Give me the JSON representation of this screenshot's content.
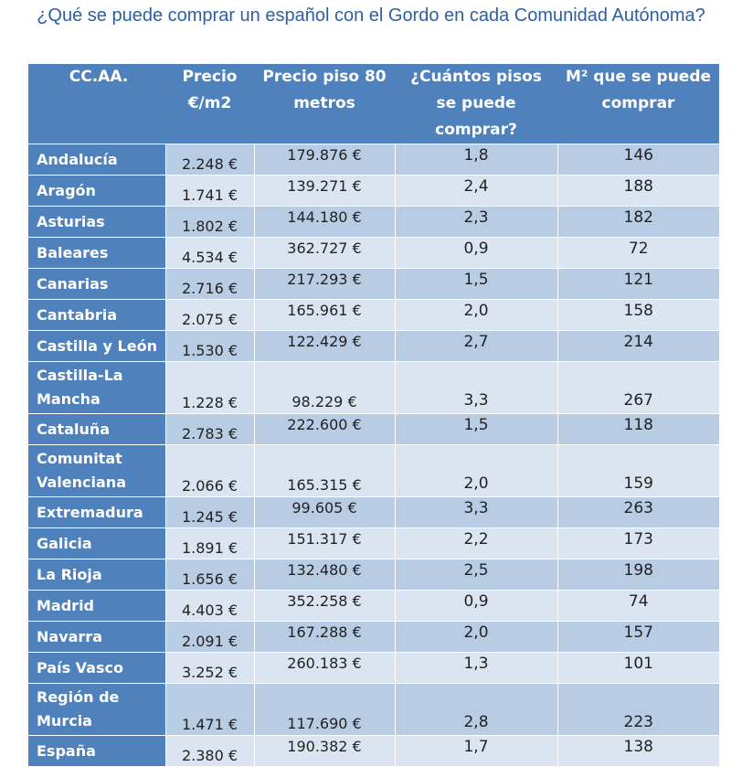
{
  "title": "¿Qué se puede comprar un español con el Gordo en cada Comunidad Autónoma?",
  "table": {
    "headers": [
      "CC.AA.",
      "Precio €/m2",
      "Precio piso 80 metros",
      "¿Cuántos pisos se puede comprar?",
      "M² que se puede comprar"
    ],
    "rows": [
      {
        "region": "Andalucía",
        "price_m2": "2.248 €",
        "price_flat": "179.876 €",
        "flats": "1,8",
        "m2": "146"
      },
      {
        "region": "Aragón",
        "price_m2": "1.741 €",
        "price_flat": "139.271 €",
        "flats": "2,4",
        "m2": "188"
      },
      {
        "region": "Asturias",
        "price_m2": "1.802 €",
        "price_flat": "144.180 €",
        "flats": "2,3",
        "m2": "182"
      },
      {
        "region": "Baleares",
        "price_m2": "4.534 €",
        "price_flat": "362.727 €",
        "flats": "0,9",
        "m2": "72"
      },
      {
        "region": "Canarias",
        "price_m2": "2.716 €",
        "price_flat": "217.293 €",
        "flats": "1,5",
        "m2": "121"
      },
      {
        "region": "Cantabria",
        "price_m2": "2.075 €",
        "price_flat": "165.961 €",
        "flats": "2,0",
        "m2": "158"
      },
      {
        "region": "Castilla y León",
        "price_m2": "1.530 €",
        "price_flat": "122.429 €",
        "flats": "2,7",
        "m2": "214"
      },
      {
        "region": "Castilla-La Mancha",
        "price_m2": "1.228 €",
        "price_flat": "98.229 €",
        "flats": "3,3",
        "m2": "267"
      },
      {
        "region": "Cataluña",
        "price_m2": "2.783 €",
        "price_flat": "222.600 €",
        "flats": "1,5",
        "m2": "118"
      },
      {
        "region": "Comunitat Valenciana",
        "price_m2": "2.066 €",
        "price_flat": "165.315 €",
        "flats": "2,0",
        "m2": "159"
      },
      {
        "region": "Extremadura",
        "price_m2": "1.245 €",
        "price_flat": "99.605 €",
        "flats": "3,3",
        "m2": "263"
      },
      {
        "region": "Galicia",
        "price_m2": "1.891 €",
        "price_flat": "151.317 €",
        "flats": "2,2",
        "m2": "173"
      },
      {
        "region": "La Rioja",
        "price_m2": "1.656 €",
        "price_flat": "132.480 €",
        "flats": "2,5",
        "m2": "198"
      },
      {
        "region": "Madrid",
        "price_m2": "4.403 €",
        "price_flat": "352.258 €",
        "flats": "0,9",
        "m2": "74"
      },
      {
        "region": "Navarra",
        "price_m2": "2.091 €",
        "price_flat": "167.288 €",
        "flats": "2,0",
        "m2": "157"
      },
      {
        "region": "País Vasco",
        "price_m2": "3.252 €",
        "price_flat": "260.183 €",
        "flats": "1,3",
        "m2": "101"
      },
      {
        "region": "Región de Murcia",
        "price_m2": "1.471 €",
        "price_flat": "117.690 €",
        "flats": "2,8",
        "m2": "223"
      },
      {
        "region": "España",
        "price_m2": "2.380 €",
        "price_flat": "190.382 €",
        "flats": "1,7",
        "m2": "138"
      }
    ]
  },
  "colors": {
    "title": "#2e5fa3",
    "header_bg": "#4f81bd",
    "row_odd": "#b8cce4",
    "row_even": "#dbe5f1"
  }
}
